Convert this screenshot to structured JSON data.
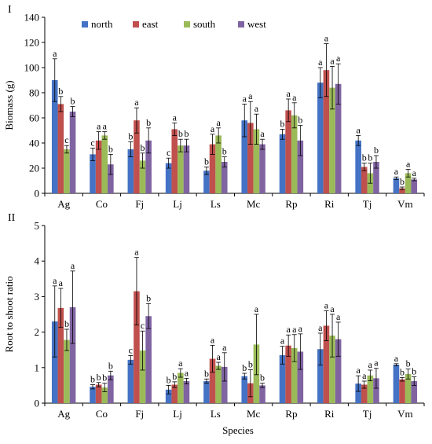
{
  "colors": {
    "north": "#4472C4",
    "east": "#C0504D",
    "south": "#9BBB59",
    "west": "#8064A2"
  },
  "xlabel": "Species",
  "chart_data": [
    {
      "type": "bar",
      "panel_label": "I",
      "ylabel": "Biomass (g)",
      "ylim": [
        0,
        140
      ],
      "yticks": [
        "0",
        "20",
        "40",
        "60",
        "80",
        "100",
        "120",
        "140"
      ],
      "legend_position": "top",
      "categories": [
        "Ag",
        "Co",
        "Fj",
        "Lj",
        "Ls",
        "Mc",
        "Rp",
        "Ri",
        "Tj",
        "Vm"
      ],
      "series": [
        {
          "name": "north",
          "values": [
            90,
            31,
            35,
            24,
            18,
            58,
            47,
            88,
            42,
            12
          ],
          "err": [
            17,
            5,
            6,
            4,
            3,
            13,
            4,
            12,
            4,
            1
          ],
          "letters": [
            "a",
            "c",
            "b",
            "c",
            "b",
            "a",
            "b",
            "a",
            "a",
            "a"
          ]
        },
        {
          "name": "east",
          "values": [
            71,
            42,
            58,
            51,
            39,
            56,
            66,
            98,
            21,
            4
          ],
          "err": [
            6,
            7,
            10,
            5,
            8,
            17,
            9,
            21,
            3,
            1
          ],
          "letters": [
            "b",
            "a",
            "a",
            "a",
            "a",
            "a",
            "a",
            "a",
            "b",
            "b"
          ]
        },
        {
          "name": "south",
          "values": [
            35,
            46,
            26,
            38,
            46,
            51,
            62,
            84,
            16,
            16
          ],
          "err": [
            3,
            3,
            6,
            5,
            6,
            12,
            10,
            17,
            8,
            3
          ],
          "letters": [
            "c",
            "a",
            "b",
            "b",
            "a",
            "a",
            "a",
            "a",
            "b",
            "a"
          ]
        },
        {
          "name": "west",
          "values": [
            65,
            23,
            42,
            38,
            25,
            39,
            42,
            87,
            25,
            11
          ],
          "err": [
            4,
            8,
            10,
            5,
            4,
            4,
            12,
            16,
            5,
            1
          ],
          "letters": [
            "b",
            "b",
            "b",
            "b",
            "b",
            "a",
            "b",
            "a",
            "b",
            "a"
          ]
        }
      ]
    },
    {
      "type": "bar",
      "panel_label": "II",
      "ylabel": "Root to shoot ratio",
      "ylim": [
        0,
        5
      ],
      "yticks": [
        "0",
        "1",
        "2",
        "3",
        "4",
        "5"
      ],
      "categories": [
        "Ag",
        "Co",
        "Fj",
        "Lj",
        "Ls",
        "Mc",
        "Rp",
        "Ri",
        "Tj",
        "Vm"
      ],
      "series": [
        {
          "name": "north",
          "values": [
            2.3,
            0.46,
            1.22,
            0.38,
            0.62,
            0.76,
            1.35,
            1.52,
            0.55,
            1.08
          ],
          "err": [
            1.0,
            0.06,
            0.12,
            0.12,
            0.06,
            0.08,
            0.25,
            0.45,
            0.22,
            0.03
          ],
          "letters": [
            "a",
            "b",
            "c",
            "b",
            "b",
            "b",
            "a",
            "a",
            "a",
            "a"
          ]
        },
        {
          "name": "east",
          "values": [
            2.68,
            0.52,
            3.15,
            0.52,
            1.25,
            0.56,
            1.62,
            2.18,
            0.52,
            0.67
          ],
          "err": [
            0.55,
            0.06,
            0.95,
            0.08,
            0.38,
            0.38,
            0.3,
            0.42,
            0.1,
            0.05
          ],
          "letters": [
            "a",
            "b",
            "a",
            "b",
            "a",
            "b",
            "a",
            "a",
            "a",
            "b"
          ]
        },
        {
          "name": "south",
          "values": [
            1.78,
            0.44,
            1.48,
            0.85,
            1.05,
            1.65,
            1.55,
            1.9,
            0.78,
            0.82
          ],
          "err": [
            0.3,
            0.12,
            0.55,
            0.12,
            0.1,
            0.85,
            0.38,
            0.6,
            0.15,
            0.14
          ],
          "letters": [
            "b",
            "b",
            "c",
            "a",
            "a",
            "a",
            "a",
            "a",
            "a",
            "b"
          ]
        },
        {
          "name": "west",
          "values": [
            2.7,
            0.78,
            2.45,
            0.62,
            1.02,
            0.5,
            1.45,
            1.8,
            0.7,
            0.62
          ],
          "err": [
            1.02,
            0.12,
            0.35,
            0.08,
            0.4,
            0.06,
            0.5,
            0.48,
            0.28,
            0.12
          ],
          "letters": [
            "a",
            "b",
            "b",
            "a",
            "a",
            "b",
            "a",
            "a",
            "a",
            "b"
          ]
        }
      ]
    }
  ]
}
